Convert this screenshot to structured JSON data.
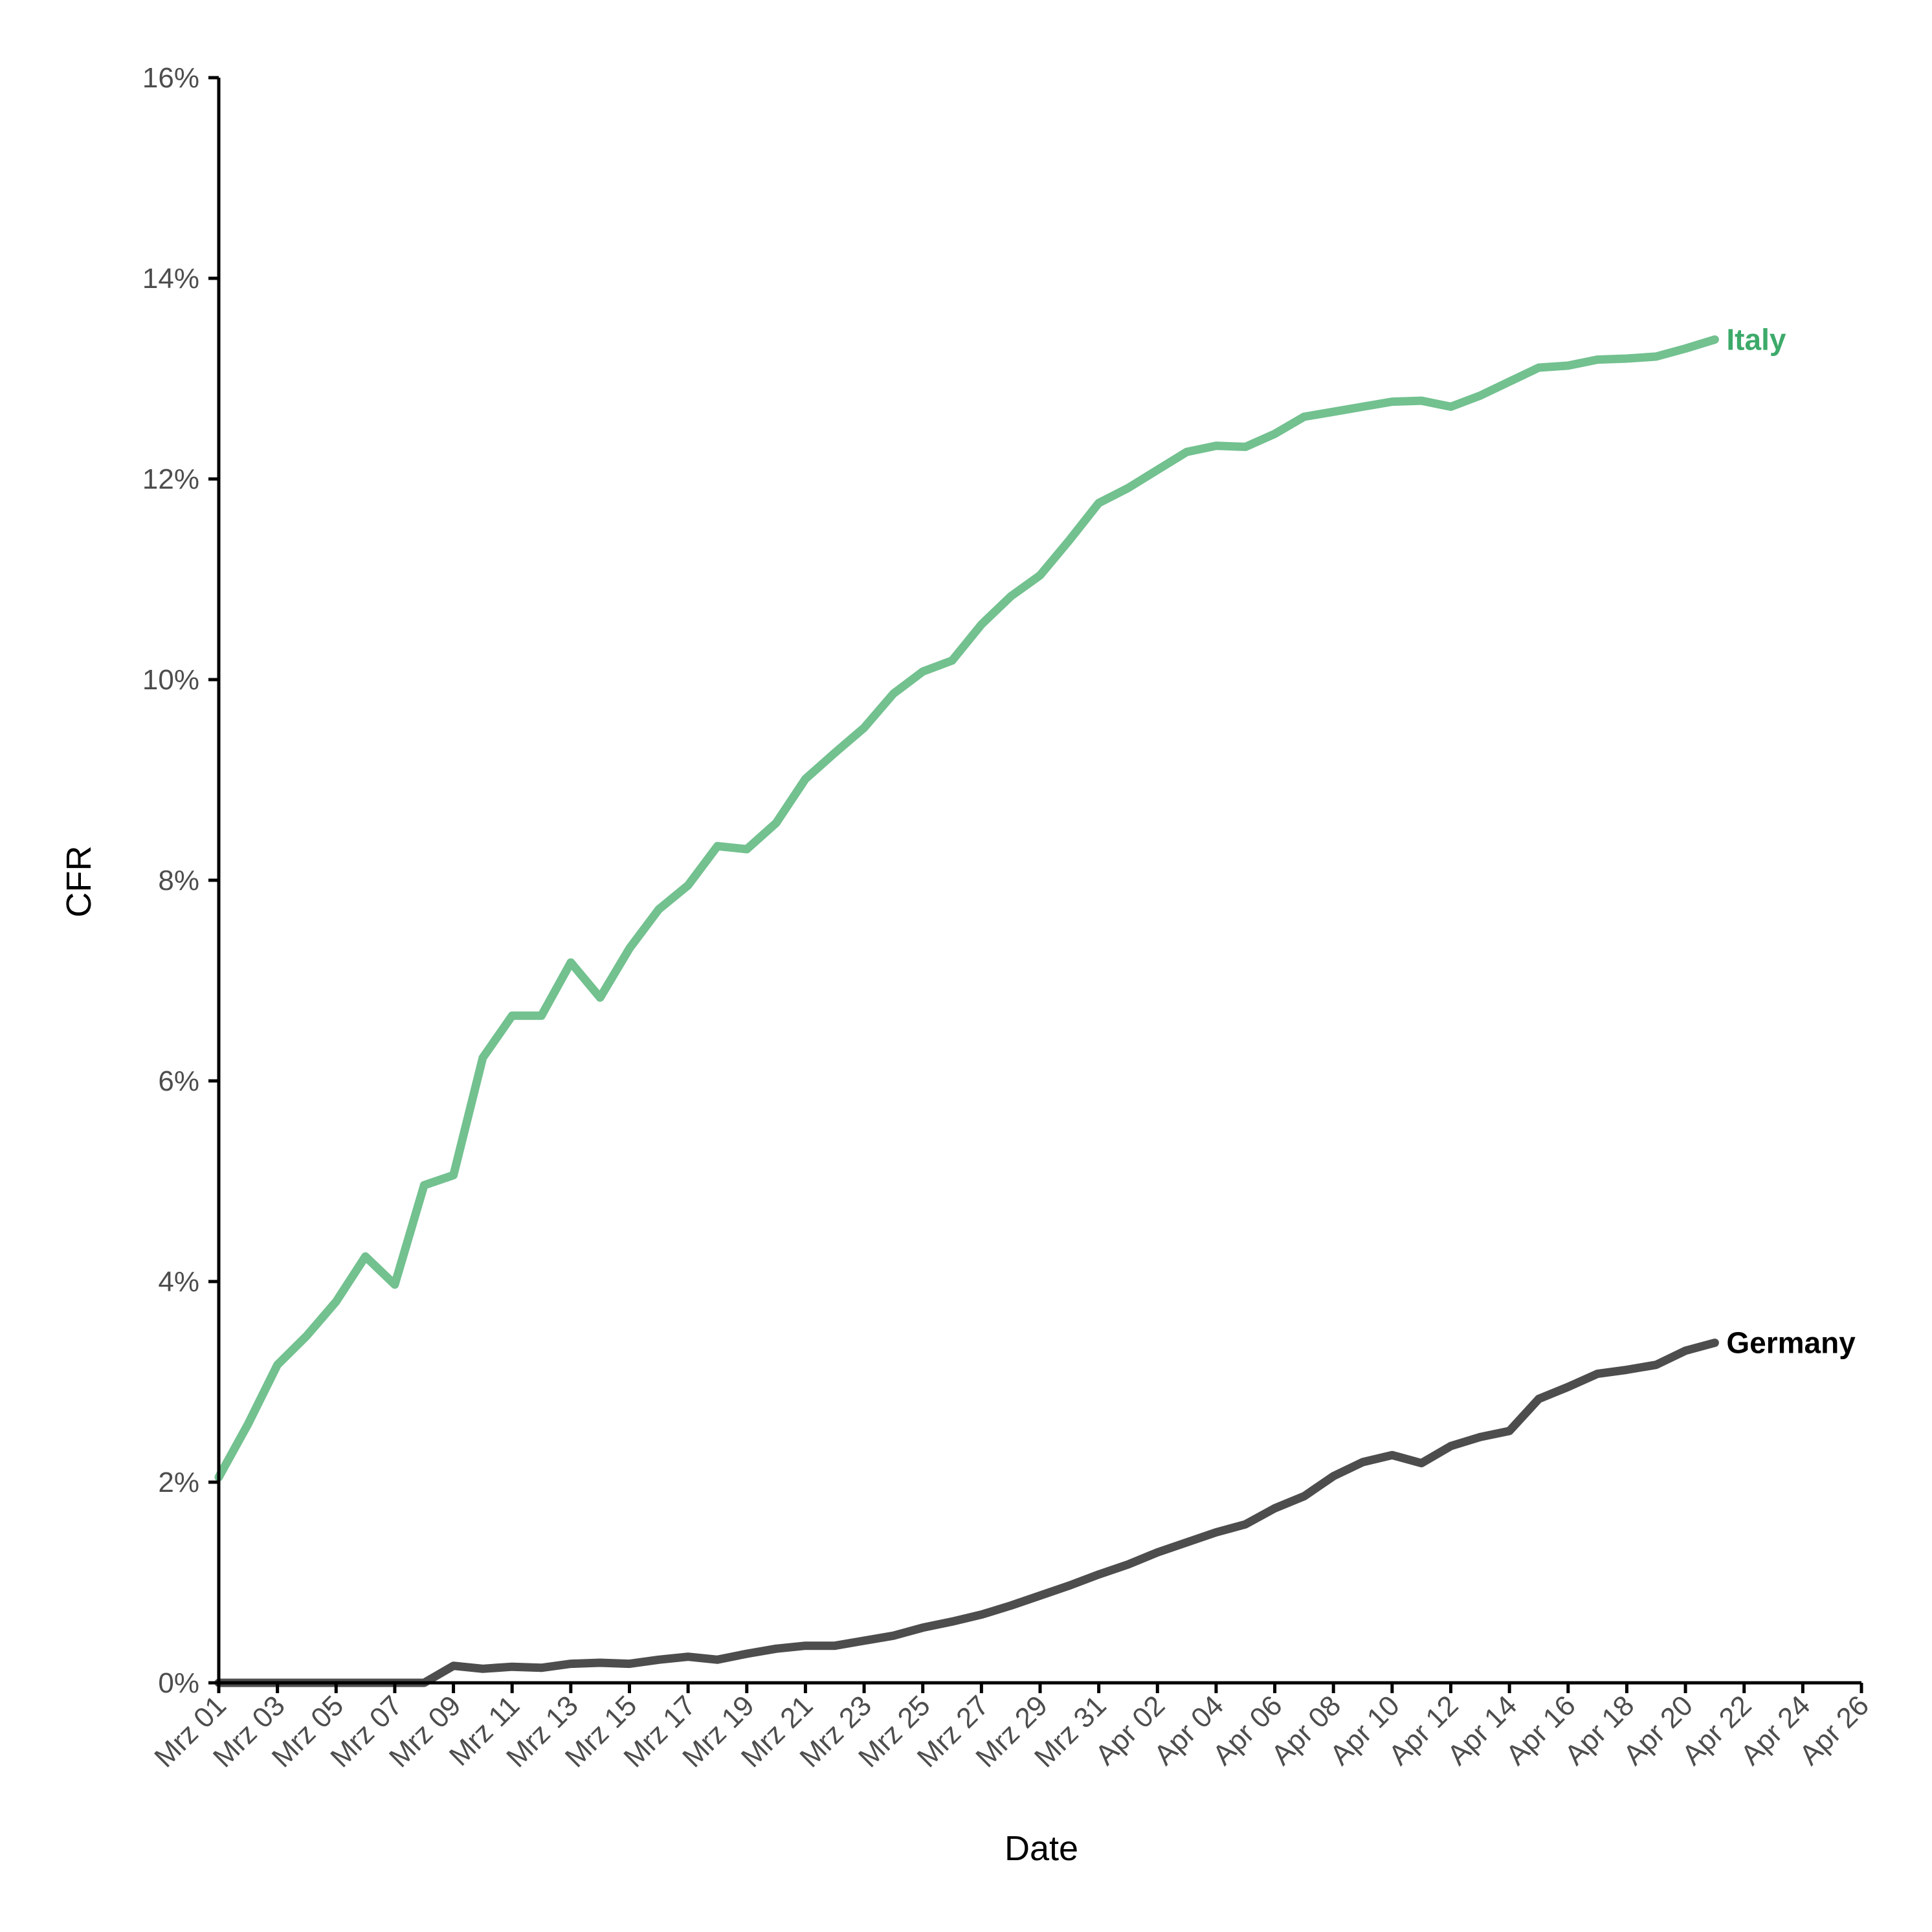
{
  "chart_data": {
    "type": "line",
    "xlabel": "Date",
    "ylabel": "CFR",
    "ylim": [
      0,
      0.16
    ],
    "y_ticks": [
      0,
      0.02,
      0.04,
      0.06,
      0.08,
      0.1,
      0.12,
      0.14,
      0.16
    ],
    "y_tick_labels": [
      "0%",
      "2%",
      "4%",
      "6%",
      "8%",
      "10%",
      "12%",
      "14%",
      "16%"
    ],
    "x_range": [
      "2020-03-01",
      "2020-04-26"
    ],
    "x_tick_labels": [
      "Mrz 01",
      "Mrz 03",
      "Mrz 05",
      "Mrz 07",
      "Mrz 09",
      "Mrz 11",
      "Mrz 13",
      "Mrz 15",
      "Mrz 17",
      "Mrz 19",
      "Mrz 21",
      "Mrz 23",
      "Mrz 25",
      "Mrz 27",
      "Mrz 29",
      "Mrz 31",
      "Apr 02",
      "Apr 04",
      "Apr 06",
      "Apr 08",
      "Apr 10",
      "Apr 12",
      "Apr 14",
      "Apr 16",
      "Apr 18",
      "Apr 20",
      "Apr 22",
      "Apr 24",
      "Apr 26"
    ],
    "x_tick_dates": [
      "2020-03-01",
      "2020-03-03",
      "2020-03-05",
      "2020-03-07",
      "2020-03-09",
      "2020-03-11",
      "2020-03-13",
      "2020-03-15",
      "2020-03-17",
      "2020-03-19",
      "2020-03-21",
      "2020-03-23",
      "2020-03-25",
      "2020-03-27",
      "2020-03-29",
      "2020-03-31",
      "2020-04-02",
      "2020-04-04",
      "2020-04-06",
      "2020-04-08",
      "2020-04-10",
      "2020-04-12",
      "2020-04-14",
      "2020-04-16",
      "2020-04-18",
      "2020-04-20",
      "2020-04-22",
      "2020-04-24",
      "2020-04-26"
    ],
    "grid": false,
    "legend": "direct labels at line ends",
    "x": [
      "2020-03-01",
      "2020-03-02",
      "2020-03-03",
      "2020-03-04",
      "2020-03-05",
      "2020-03-06",
      "2020-03-07",
      "2020-03-08",
      "2020-03-09",
      "2020-03-10",
      "2020-03-11",
      "2020-03-12",
      "2020-03-13",
      "2020-03-14",
      "2020-03-15",
      "2020-03-16",
      "2020-03-17",
      "2020-03-18",
      "2020-03-19",
      "2020-03-20",
      "2020-03-21",
      "2020-03-22",
      "2020-03-23",
      "2020-03-24",
      "2020-03-25",
      "2020-03-26",
      "2020-03-27",
      "2020-03-28",
      "2020-03-29",
      "2020-03-30",
      "2020-03-31",
      "2020-04-01",
      "2020-04-02",
      "2020-04-03",
      "2020-04-04",
      "2020-04-05",
      "2020-04-06",
      "2020-04-07",
      "2020-04-08",
      "2020-04-09",
      "2020-04-10",
      "2020-04-11",
      "2020-04-12",
      "2020-04-13",
      "2020-04-14",
      "2020-04-15",
      "2020-04-16",
      "2020-04-17",
      "2020-04-18",
      "2020-04-19",
      "2020-04-20",
      "2020-04-21"
    ],
    "series": [
      {
        "name": "Italy",
        "color": "#72c18f",
        "label_color": "#3daa6a",
        "values": [
          0.0205,
          0.0258,
          0.0317,
          0.0346,
          0.038,
          0.0425,
          0.0397,
          0.0496,
          0.0506,
          0.0623,
          0.0665,
          0.0665,
          0.0718,
          0.0683,
          0.0732,
          0.0771,
          0.0795,
          0.0834,
          0.0831,
          0.0857,
          0.0901,
          0.0927,
          0.0952,
          0.0986,
          0.1008,
          0.1019,
          0.1055,
          0.1083,
          0.1104,
          0.1139,
          0.1176,
          0.1191,
          0.1209,
          0.1227,
          0.1233,
          0.1232,
          0.1245,
          0.1262,
          0.1267,
          0.1272,
          0.1277,
          0.1278,
          0.1272,
          0.1283,
          0.1297,
          0.1311,
          0.1313,
          0.1319,
          0.132,
          0.1322,
          0.133,
          0.1339
        ]
      },
      {
        "name": "Germany",
        "color": "#4d4d4d",
        "label_color": "#000000",
        "values": [
          0,
          0,
          0,
          0,
          0,
          0,
          0,
          0,
          0.0017,
          0.0014,
          0.0016,
          0.0015,
          0.0019,
          0.002,
          0.0019,
          0.0023,
          0.0026,
          0.0023,
          0.0029,
          0.0034,
          0.0037,
          0.0037,
          0.0042,
          0.0047,
          0.0055,
          0.0061,
          0.0068,
          0.0077,
          0.0087,
          0.0097,
          0.0108,
          0.0118,
          0.013,
          0.014,
          0.015,
          0.0158,
          0.0174,
          0.0186,
          0.0206,
          0.022,
          0.0227,
          0.0219,
          0.0236,
          0.0245,
          0.0251,
          0.0283,
          0.0295,
          0.0308,
          0.0312,
          0.0317,
          0.0331,
          0.0339
        ]
      }
    ]
  }
}
